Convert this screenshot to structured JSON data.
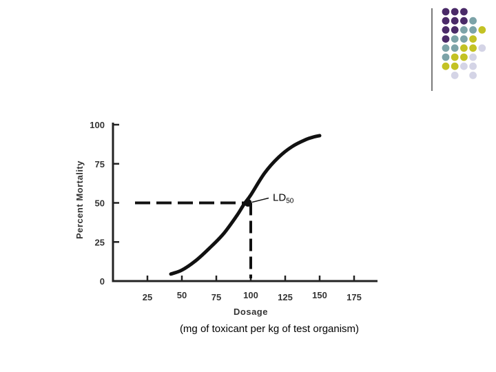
{
  "decoration": {
    "dot_colors": {
      "purple": "#4a2a68",
      "teal": "#7ca3a8",
      "yellow": "#c3c224",
      "lavender": "#d4d4e6"
    },
    "rule_color": "#222222"
  },
  "chart_data": {
    "type": "line",
    "title": "",
    "xlabel": "Dosage",
    "ylabel": "Percent Mortality",
    "x_ticks": [
      25,
      50,
      75,
      100,
      125,
      150,
      175
    ],
    "y_ticks": [
      0,
      25,
      50,
      75,
      100
    ],
    "xlim": [
      0,
      192
    ],
    "ylim": [
      0,
      100
    ],
    "grid": false,
    "legend": "none",
    "series": [
      {
        "color": "#111111",
        "x": [
          42,
          50,
          60,
          70,
          80,
          90,
          95,
          100,
          110,
          120,
          130,
          140,
          145,
          150
        ],
        "y": [
          4.5,
          7,
          13,
          21,
          30,
          42,
          49,
          55,
          69,
          79,
          86,
          90.5,
          92,
          93
        ]
      }
    ],
    "annotations": [
      {
        "label_main": "LD",
        "label_sub": "50",
        "point": {
          "x": 98,
          "y": 50
        },
        "dashed_guides": true
      }
    ],
    "subcaption": "(mg of toxicant per kg of test organism)"
  }
}
